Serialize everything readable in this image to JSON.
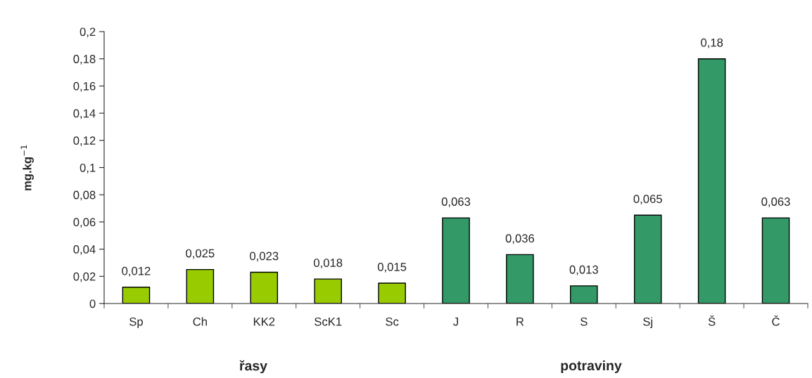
{
  "chart_data": {
    "type": "bar",
    "ylabel": "mg.kg$^{−1}$",
    "categories": [
      "Sp",
      "Ch",
      "KK2",
      "ScK1",
      "Sc",
      "J",
      "R",
      "S",
      "Sj",
      "Š",
      "Č"
    ],
    "values": [
      0.012,
      0.025,
      0.023,
      0.018,
      0.015,
      0.063,
      0.036,
      0.013,
      0.065,
      0.18,
      0.063
    ],
    "colors": [
      "#99cc00",
      "#99cc00",
      "#99cc00",
      "#99cc00",
      "#99cc00",
      "#339966",
      "#339966",
      "#339966",
      "#339966",
      "#339966",
      "#339966"
    ],
    "value_labels": [
      "0,012",
      "0,025",
      "0,023",
      "0,018",
      "0,015",
      "0,063",
      "0,036",
      "0,013",
      "0,065",
      "0,18",
      "0,063"
    ],
    "ylim": [
      0,
      0.2
    ],
    "yticks": [
      0,
      {
        "value": 0.02,
        "label": "0,02"
      },
      {
        "value": 0.04,
        "label": "0,04"
      },
      {
        "value": 0.06,
        "label": "0,06"
      },
      {
        "value": 0.08,
        "label": "0,08"
      },
      {
        "value": 0.1,
        "label": "0,1"
      },
      {
        "value": 0.12,
        "label": "0,12"
      },
      {
        "value": 0.14,
        "label": "0,14"
      },
      {
        "value": 0.16,
        "label": "0,16"
      },
      {
        "value": 0.18,
        "label": "0,18"
      },
      {
        "value": 0.2,
        "label": "0,2"
      }
    ],
    "annotations": [
      "řasy",
      "potraviny"
    ],
    "grid": false,
    "legend": false
  }
}
